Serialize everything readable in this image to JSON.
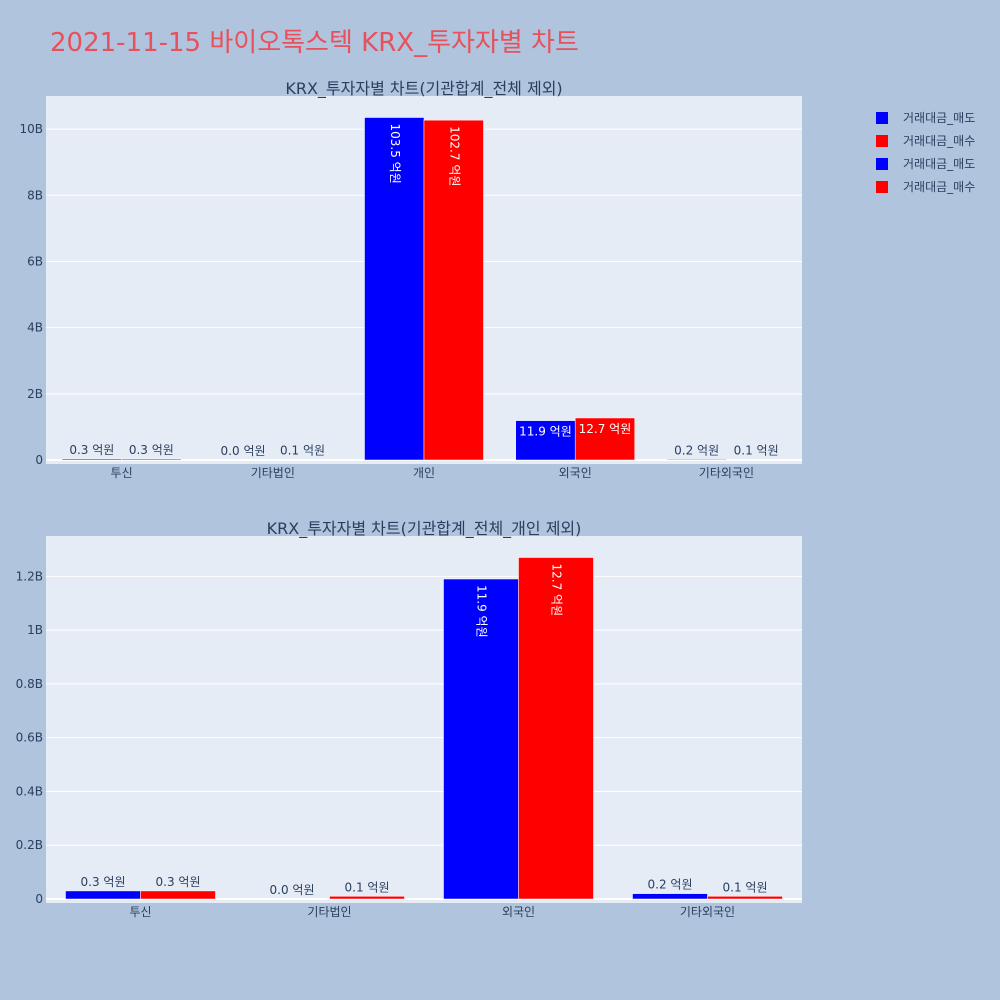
{
  "page_title": "2021-11-15 바이오톡스텍 KRX_투자자별 차트",
  "legend": [
    {
      "label": "거래대금_매도",
      "color": "#0000ff"
    },
    {
      "label": "거래대금_매수",
      "color": "#ff0000"
    },
    {
      "label": "거래대금_매도",
      "color": "#0000ff"
    },
    {
      "label": "거래대금_매수",
      "color": "#ff0000"
    }
  ],
  "chart_data": [
    {
      "type": "bar",
      "title": "KRX_투자자별 차트(기관합계_전체 제외)",
      "categories": [
        "투신",
        "기타법인",
        "개인",
        "외국인",
        "기타외국인"
      ],
      "series": [
        {
          "name": "거래대금_매도",
          "color": "#0000ff",
          "values": [
            30000000,
            0,
            10350000000,
            1190000000,
            20000000
          ],
          "labels": [
            "0.3 억원",
            "0.0 억원",
            "103.5 억원",
            "11.9 억원",
            "0.2 억원"
          ]
        },
        {
          "name": "거래대금_매수",
          "color": "#ff0000",
          "values": [
            30000000,
            10000000,
            10270000000,
            1270000000,
            10000000
          ],
          "labels": [
            "0.3 억원",
            "0.1 억원",
            "102.7 억원",
            "12.7 억원",
            "0.1 억원"
          ]
        }
      ],
      "ylim": [
        0,
        11000000000
      ],
      "yticks": [
        0,
        2000000000,
        4000000000,
        6000000000,
        8000000000,
        10000000000
      ],
      "ytick_labels": [
        "0",
        "2B",
        "4B",
        "6B",
        "8B",
        "10B"
      ],
      "grid": true
    },
    {
      "type": "bar",
      "title": "KRX_투자자별 차트(기관합계_전체_개인 제외)",
      "categories": [
        "투신",
        "기타법인",
        "외국인",
        "기타외국인"
      ],
      "series": [
        {
          "name": "거래대금_매도",
          "color": "#0000ff",
          "values": [
            30000000,
            0,
            1190000000,
            20000000
          ],
          "labels": [
            "0.3 억원",
            "0.0 억원",
            "11.9 억원",
            "0.2 억원"
          ]
        },
        {
          "name": "거래대금_매수",
          "color": "#ff0000",
          "values": [
            30000000,
            10000000,
            1270000000,
            10000000
          ],
          "labels": [
            "0.3 억원",
            "0.1 억원",
            "12.7 억원",
            "0.1 억원"
          ]
        }
      ],
      "ylim": [
        0,
        1350000000
      ],
      "yticks": [
        0,
        200000000,
        400000000,
        600000000,
        800000000,
        1000000000,
        1200000000
      ],
      "ytick_labels": [
        "0",
        "0.2B",
        "0.4B",
        "0.6B",
        "0.8B",
        "1B",
        "1.2B"
      ],
      "grid": true
    }
  ]
}
